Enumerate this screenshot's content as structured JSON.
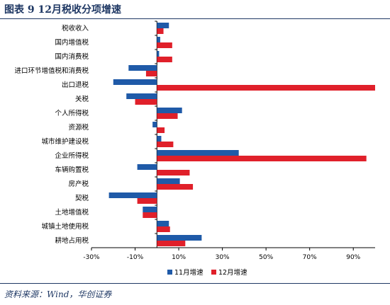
{
  "figure": {
    "title": "图表 9   12月税收分项增速",
    "source": "资料来源：Wind，华创证券"
  },
  "colors": {
    "series1": "#1f5aa8",
    "series2": "#e0202a",
    "title": "#1f3864"
  },
  "chart_data": {
    "type": "bar",
    "orientation": "horizontal",
    "title": "12月税收分项增速",
    "categories": [
      "税收收入",
      "国内增值税",
      "国内消费税",
      "进口环节增值税和消费税",
      "出口退税",
      "关税",
      "个人所得税",
      "资源税",
      "城市维护建设税",
      "企业所得税",
      "车辆购置税",
      "房产税",
      "契税",
      "土地增值税",
      "城镇土地使用税",
      "耕地占用税"
    ],
    "series": [
      {
        "name": "11月增速",
        "color": "#1f5aa8",
        "values": [
          5.5,
          1.5,
          1.0,
          -13,
          -20,
          -14,
          11.5,
          -2,
          2,
          37.5,
          -9,
          10.5,
          -22,
          -6.5,
          5.5,
          20.5
        ]
      },
      {
        "name": "12月增速",
        "color": "#e0202a",
        "values": [
          3,
          7,
          7,
          -5,
          100,
          -10,
          9.5,
          3.5,
          7.5,
          96,
          15,
          16.5,
          -9,
          -6.5,
          6,
          13
        ]
      }
    ],
    "xlim": [
      -30,
      100
    ],
    "xticks": [
      "-30%",
      "-10%",
      "10%",
      "30%",
      "50%",
      "70%",
      "90%"
    ],
    "xtick_values": [
      -30,
      -10,
      10,
      30,
      50,
      70,
      90
    ],
    "legend": "bottom",
    "grid": false
  }
}
